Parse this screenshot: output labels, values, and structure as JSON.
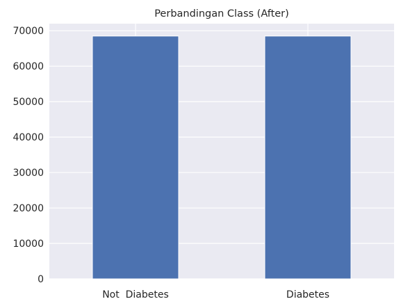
{
  "chart_data": {
    "type": "bar",
    "title": "Perbandingan Class (After)",
    "xlabel": "",
    "ylabel": "",
    "categories": [
      "Not  Diabetes",
      "Diabetes"
    ],
    "values": [
      68500,
      68500
    ],
    "ylim": [
      0,
      72000
    ],
    "yticks": [
      0,
      10000,
      20000,
      30000,
      40000,
      50000,
      60000,
      70000
    ],
    "ytick_labels": [
      "0",
      "10000",
      "20000",
      "30000",
      "40000",
      "50000",
      "60000",
      "70000"
    ],
    "grid": true,
    "legend": "none",
    "colors": {
      "bar": "#4c72b0",
      "plot_background": "#eaeaf2",
      "grid": "#ffffff",
      "text": "#262626"
    }
  }
}
